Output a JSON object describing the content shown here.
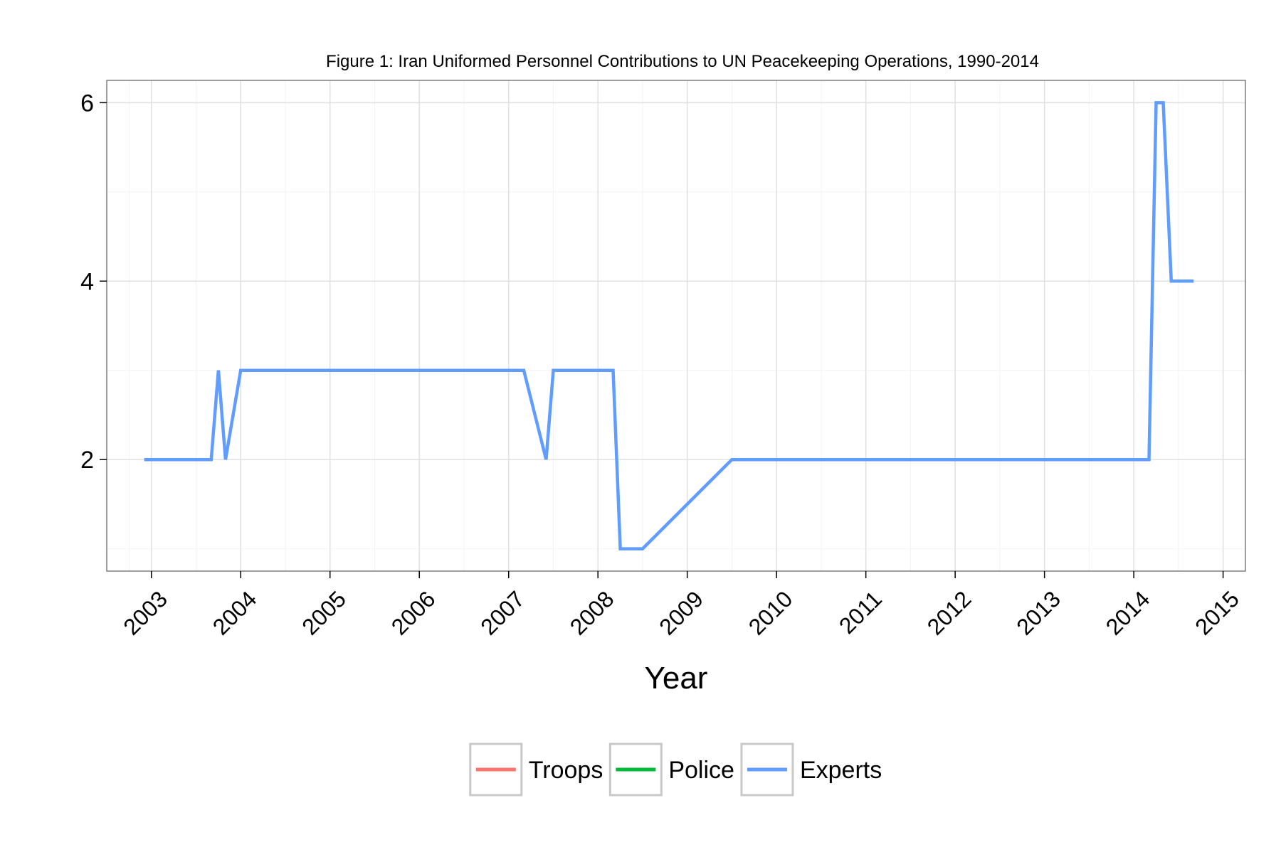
{
  "chart_data": {
    "type": "line",
    "title": "Figure 1: Iran Uniformed Personnel Contributions to UN Peacekeeping Operations, 1990-2014",
    "xlabel": "Year",
    "ylabel": "",
    "xlim": [
      2002.5,
      2015.25
    ],
    "ylim": [
      0.75,
      6.25
    ],
    "x_ticks": [
      2003,
      2004,
      2005,
      2006,
      2007,
      2008,
      2009,
      2010,
      2011,
      2012,
      2013,
      2014,
      2015
    ],
    "x_tick_labels": [
      "2003",
      "2004",
      "2005",
      "2006",
      "2007",
      "2008",
      "2009",
      "2010",
      "2011",
      "2012",
      "2013",
      "2014",
      "2015"
    ],
    "y_ticks": [
      2,
      4,
      6
    ],
    "y_tick_labels": [
      "2",
      "4",
      "6"
    ],
    "grid": true,
    "legend_position": "bottom",
    "series": [
      {
        "name": "Troops",
        "color": "#F8766D",
        "x": [],
        "y": []
      },
      {
        "name": "Police",
        "color": "#00BA38",
        "x": [],
        "y": []
      },
      {
        "name": "Experts",
        "color": "#619CFF",
        "x": [
          2002.92,
          2003.67,
          2003.75,
          2003.83,
          2004.0,
          2007.17,
          2007.42,
          2007.5,
          2008.17,
          2008.25,
          2008.5,
          2009.5,
          2014.17,
          2014.25,
          2014.33,
          2014.42,
          2014.67
        ],
        "y": [
          2,
          2,
          3,
          2,
          3,
          3,
          2,
          3,
          3,
          1,
          1,
          2,
          2,
          6,
          6,
          4,
          4
        ]
      }
    ]
  }
}
